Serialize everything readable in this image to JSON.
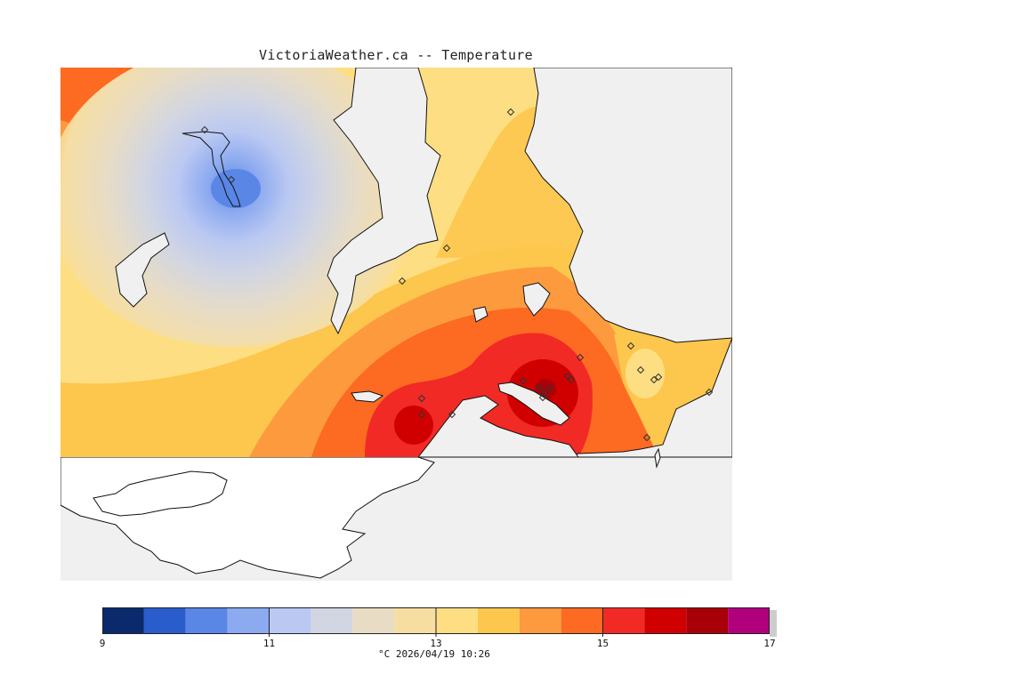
{
  "title": "VictoriaWeather.ca -- Temperature",
  "legend": {
    "ticks": [
      "9",
      "11",
      "13",
      "15",
      "17"
    ],
    "caption": "°C  2026/04/19 10:26",
    "colors": [
      "#0b2a6e",
      "#2a5ccc",
      "#5a86e6",
      "#8caaf0",
      "#bac8f2",
      "#d2d6e2",
      "#e8dcc4",
      "#f6dea2",
      "#fede82",
      "#fdc64c",
      "#fd9a3e",
      "#fd6a22",
      "#f12a26",
      "#d10000",
      "#a80008",
      "#b0007c"
    ]
  },
  "map": {
    "background": "#f0f0f0",
    "stations": 22
  }
}
